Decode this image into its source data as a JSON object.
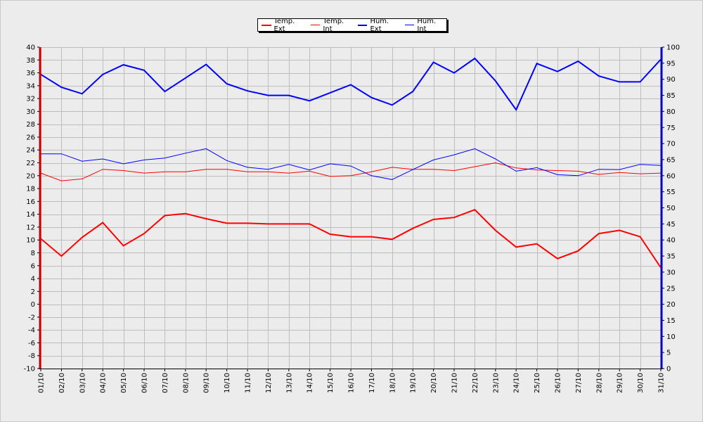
{
  "chart_data": {
    "type": "line",
    "categories": [
      "01/10",
      "02/10",
      "03/10",
      "04/10",
      "05/10",
      "06/10",
      "07/10",
      "08/10",
      "09/10",
      "10/10",
      "11/10",
      "12/10",
      "13/10",
      "14/10",
      "15/10",
      "16/10",
      "17/10",
      "18/10",
      "19/10",
      "20/10",
      "21/10",
      "22/10",
      "23/10",
      "24/10",
      "25/10",
      "26/10",
      "27/10",
      "28/10",
      "29/10",
      "30/10",
      "31/10"
    ],
    "y_left": {
      "min": -10,
      "max": 40,
      "step": 2
    },
    "y_right": {
      "min": 0,
      "max": 100,
      "step": 5
    },
    "grid": true,
    "legend_position": "top-center",
    "series": [
      {
        "name": "Temp. Ext",
        "axis": "left",
        "color": "#ff0000",
        "width": 2,
        "values": [
          10.2,
          7.5,
          10.4,
          12.7,
          9.1,
          11.0,
          13.8,
          14.1,
          13.3,
          12.6,
          12.6,
          12.5,
          12.5,
          12.5,
          10.9,
          10.5,
          10.5,
          10.1,
          11.8,
          13.2,
          13.5,
          14.7,
          11.5,
          8.9,
          9.4,
          7.1,
          8.3,
          11.0,
          11.5,
          10.5,
          5.7
        ]
      },
      {
        "name": "Temp. Int",
        "axis": "left",
        "color": "#ff0000",
        "width": 1,
        "values": [
          20.4,
          19.2,
          19.5,
          21.0,
          20.8,
          20.4,
          20.6,
          20.6,
          21.0,
          21.0,
          20.6,
          20.6,
          20.4,
          20.7,
          19.9,
          20.0,
          20.6,
          21.3,
          21.0,
          21.0,
          20.8,
          21.4,
          22.0,
          21.2,
          20.9,
          20.8,
          20.7,
          20.2,
          20.5,
          20.3,
          20.4
        ]
      },
      {
        "name": "Hum. Ext",
        "axis": "right",
        "color": "#0000ff",
        "width": 2,
        "values": [
          91.5,
          87.5,
          85.5,
          91.5,
          94.5,
          92.8,
          86.2,
          90.4,
          94.6,
          88.6,
          86.4,
          85.0,
          85.0,
          83.3,
          85.8,
          88.3,
          84.3,
          82.0,
          86.2,
          95.3,
          92.0,
          96.5,
          89.5,
          80.5,
          94.9,
          92.4,
          95.6,
          91.0,
          89.2,
          89.2,
          96.2
        ]
      },
      {
        "name": "Hum. Int",
        "axis": "right",
        "color": "#0000ff",
        "width": 1,
        "values": [
          66.8,
          66.8,
          64.5,
          65.2,
          63.7,
          64.9,
          65.5,
          67.0,
          68.4,
          64.7,
          62.6,
          62.0,
          63.5,
          61.8,
          63.7,
          63.0,
          60.0,
          58.8,
          61.9,
          64.9,
          66.5,
          68.4,
          65.2,
          61.4,
          62.5,
          60.3,
          60.0,
          62.0,
          61.9,
          63.5,
          63.2
        ]
      }
    ]
  }
}
